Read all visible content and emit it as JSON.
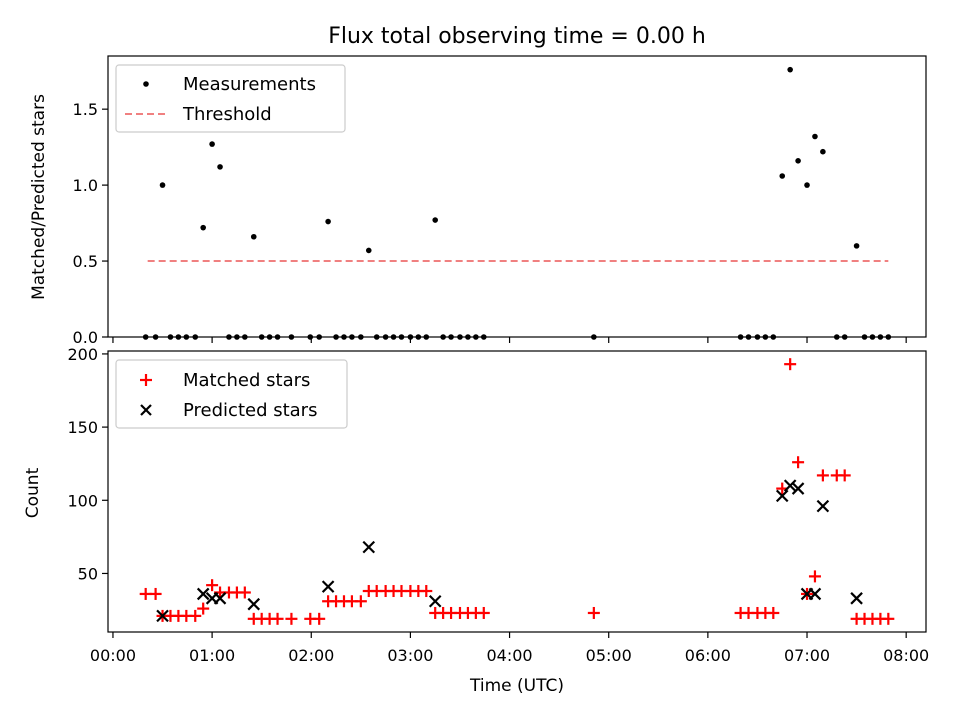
{
  "chart_data": [
    {
      "type": "scatter",
      "title": "Flux total observing time = 0.00 h",
      "xlabel": "",
      "ylabel": "Matched/Predicted stars",
      "ylim": [
        0,
        1.85
      ],
      "xlim": [
        -0.05,
        8.2
      ],
      "yticks": [
        0.0,
        0.5,
        1.0,
        1.5
      ],
      "ytick_labels": [
        "0.0",
        "0.5",
        "1.0",
        "1.5"
      ],
      "xticks": [
        0,
        1,
        2,
        3,
        4,
        5,
        6,
        7,
        8
      ],
      "legend_position": "top-left",
      "series": [
        {
          "name": "Measurements",
          "color": "#000000",
          "marker": "dot",
          "x": [
            0.33,
            0.43,
            0.5,
            0.58,
            0.66,
            0.74,
            0.83,
            0.91,
            1.0,
            1.08,
            1.17,
            1.25,
            1.33,
            1.42,
            1.5,
            1.58,
            1.66,
            1.8,
            1.99,
            2.08,
            2.17,
            2.25,
            2.33,
            2.41,
            2.5,
            2.58,
            2.66,
            2.75,
            2.83,
            2.91,
            3.0,
            3.08,
            3.16,
            3.25,
            3.33,
            3.41,
            3.5,
            3.58,
            3.66,
            3.74,
            4.85,
            6.33,
            6.41,
            6.5,
            6.58,
            6.66,
            6.75,
            6.83,
            6.91,
            7.0,
            7.08,
            7.16,
            7.3,
            7.38,
            7.5,
            7.58,
            7.66,
            7.74,
            7.82
          ],
          "values": [
            0,
            0,
            1.0,
            0,
            0,
            0,
            0,
            0.72,
            1.27,
            1.12,
            0,
            0,
            0,
            0.66,
            0,
            0,
            0,
            0,
            0,
            0,
            0.76,
            0,
            0,
            0,
            0,
            0.57,
            0,
            0,
            0,
            0,
            0,
            0,
            0,
            0.77,
            0,
            0,
            0,
            0,
            0,
            0,
            0,
            0,
            0,
            0,
            0,
            0,
            1.06,
            1.76,
            1.16,
            1.0,
            1.32,
            1.22,
            0,
            0,
            0.6,
            0,
            0,
            0,
            0
          ]
        },
        {
          "name": "Threshold",
          "color": "#f08080",
          "marker": "dashed-line",
          "x": [
            0.35,
            7.82
          ],
          "values": [
            0.5,
            0.5
          ]
        }
      ]
    },
    {
      "type": "scatter",
      "title": "",
      "xlabel": "Time (UTC)",
      "ylabel": "Count",
      "ylim": [
        10,
        202
      ],
      "xlim": [
        -0.05,
        8.2
      ],
      "yticks": [
        50,
        100,
        150,
        200
      ],
      "ytick_labels": [
        "50",
        "100",
        "150",
        "200"
      ],
      "xticks": [
        0,
        1,
        2,
        3,
        4,
        5,
        6,
        7,
        8
      ],
      "xtick_labels": [
        "00:00",
        "01:00",
        "02:00",
        "03:00",
        "04:00",
        "05:00",
        "06:00",
        "07:00",
        "08:00"
      ],
      "legend_position": "top-left",
      "series": [
        {
          "name": "Matched stars",
          "color": "#ff0000",
          "marker": "plus",
          "x": [
            0.33,
            0.43,
            0.5,
            0.58,
            0.66,
            0.74,
            0.83,
            0.91,
            1.0,
            1.08,
            1.17,
            1.25,
            1.33,
            1.42,
            1.5,
            1.58,
            1.66,
            1.8,
            1.99,
            2.08,
            2.17,
            2.25,
            2.33,
            2.41,
            2.5,
            2.58,
            2.66,
            2.75,
            2.83,
            2.91,
            3.0,
            3.08,
            3.16,
            3.25,
            3.33,
            3.41,
            3.5,
            3.58,
            3.66,
            3.74,
            4.85,
            6.33,
            6.41,
            6.5,
            6.58,
            6.66,
            6.75,
            6.83,
            6.91,
            7.0,
            7.08,
            7.16,
            7.3,
            7.38,
            7.5,
            7.58,
            7.66,
            7.74,
            7.82
          ],
          "values": [
            36,
            36,
            21,
            21,
            21,
            21,
            21,
            26,
            42,
            37,
            37,
            37,
            37,
            19,
            19,
            19,
            19,
            19,
            19,
            19,
            31,
            31,
            31,
            31,
            31,
            38,
            38,
            38,
            38,
            38,
            38,
            38,
            38,
            23,
            23,
            23,
            23,
            23,
            23,
            23,
            23,
            23,
            23,
            23,
            23,
            23,
            108,
            193,
            126,
            36,
            48,
            117,
            117,
            117,
            19,
            19,
            19,
            19,
            19
          ]
        },
        {
          "name": "Predicted stars",
          "color": "#000000",
          "marker": "x",
          "x": [
            0.5,
            0.91,
            1.0,
            1.08,
            1.42,
            2.17,
            2.58,
            3.25,
            6.75,
            6.83,
            6.91,
            7.0,
            7.08,
            7.16,
            7.5
          ],
          "values": [
            21,
            36,
            33,
            33,
            29,
            41,
            68,
            31,
            103,
            110,
            108,
            36,
            36,
            96,
            33
          ]
        }
      ]
    }
  ]
}
